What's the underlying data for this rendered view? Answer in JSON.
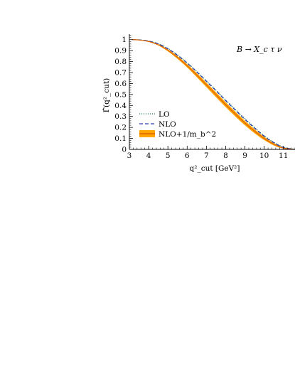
{
  "chart_data": {
    "type": "line",
    "title": "",
    "annotation": "B → X_c τ ν",
    "xlabel": "q²_cut [GeV²]",
    "ylabel": "Γ̂(q²_cut)",
    "xlim": [
      3,
      11.6
    ],
    "ylim": [
      0,
      1.05
    ],
    "x_ticks": [
      "3",
      "4",
      "5",
      "6",
      "7",
      "8",
      "9",
      "10",
      "11"
    ],
    "y_ticks": [
      "0",
      "0.1",
      "0.2",
      "0.3",
      "0.4",
      "0.5",
      "0.6",
      "0.7",
      "0.8",
      "0.9",
      "1"
    ],
    "grid": false,
    "legend_position": "lower-left",
    "x": [
      3.16,
      3.5,
      4,
      4.5,
      5,
      5.5,
      6,
      6.5,
      7,
      7.5,
      8,
      8.5,
      9,
      9.5,
      10,
      10.5,
      11,
      11.6
    ],
    "series": [
      {
        "name": "LO",
        "color": "#2e8b57",
        "style": "dotted",
        "values": [
          1.0,
          0.998,
          0.988,
          0.963,
          0.92,
          0.86,
          0.79,
          0.71,
          0.625,
          0.54,
          0.45,
          0.365,
          0.28,
          0.2,
          0.125,
          0.065,
          0.02,
          0.0
        ]
      },
      {
        "name": "NLO",
        "color": "#2b3fb0",
        "style": "dashed",
        "values": [
          1.0,
          0.998,
          0.987,
          0.961,
          0.917,
          0.857,
          0.786,
          0.706,
          0.62,
          0.534,
          0.444,
          0.358,
          0.273,
          0.194,
          0.12,
          0.061,
          0.018,
          0.0
        ]
      },
      {
        "name": "NLO+1/m_b^2",
        "color": "#e06000",
        "style": "band",
        "band_color": "#ffa500",
        "values": [
          1.0,
          0.997,
          0.983,
          0.953,
          0.903,
          0.838,
          0.762,
          0.677,
          0.588,
          0.498,
          0.408,
          0.322,
          0.24,
          0.166,
          0.1,
          0.047,
          0.012,
          0.0
        ],
        "upper": [
          1.0,
          0.998,
          0.986,
          0.958,
          0.912,
          0.85,
          0.777,
          0.695,
          0.608,
          0.52,
          0.43,
          0.344,
          0.261,
          0.185,
          0.115,
          0.058,
          0.017,
          0.0
        ],
        "lower": [
          1.0,
          0.996,
          0.979,
          0.947,
          0.893,
          0.825,
          0.746,
          0.658,
          0.567,
          0.475,
          0.385,
          0.3,
          0.219,
          0.147,
          0.085,
          0.036,
          0.007,
          0.0
        ]
      }
    ]
  }
}
